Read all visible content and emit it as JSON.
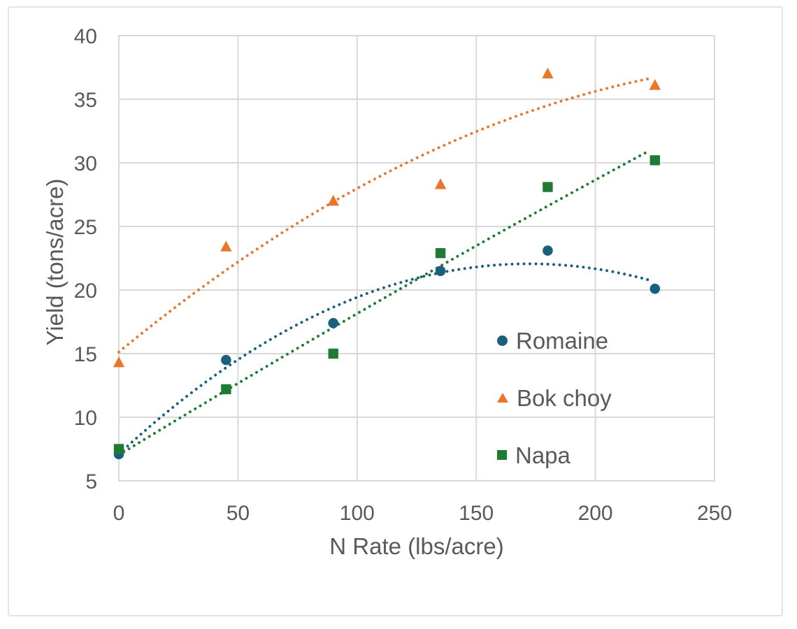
{
  "chart_data": {
    "type": "scatter",
    "title": "",
    "xlabel": "N Rate (lbs/acre)",
    "ylabel": "Yield (tons/acre)",
    "xlim": [
      0,
      250
    ],
    "ylim": [
      5,
      40
    ],
    "xticks": [
      0,
      50,
      100,
      150,
      200,
      250
    ],
    "yticks": [
      5,
      10,
      15,
      20,
      25,
      30,
      35,
      40
    ],
    "grid": true,
    "legend_position": "inside-right-middle",
    "x": [
      0,
      45,
      90,
      135,
      180,
      225
    ],
    "series": [
      {
        "name": "Romaine",
        "marker": "circle",
        "color": "#1B5F7E",
        "values": [
          7.1,
          14.5,
          17.4,
          21.5,
          23.1,
          20.1
        ],
        "trendline": "quadratic-dotted"
      },
      {
        "name": "Bok choy",
        "marker": "triangle",
        "color": "#E8772B",
        "values": [
          14.3,
          23.4,
          27.0,
          28.3,
          37.0,
          36.1
        ],
        "trendline": "quadratic-dotted"
      },
      {
        "name": "Napa",
        "marker": "square",
        "color": "#1F7A33",
        "values": [
          7.5,
          12.2,
          15.0,
          22.9,
          28.1,
          30.2
        ],
        "trendline": "quadratic-dotted"
      }
    ],
    "colors": {
      "text": "#595959",
      "gridline": "#D9D9D9",
      "card_border": "#E4E4E4",
      "background": "#FFFFFF"
    }
  }
}
